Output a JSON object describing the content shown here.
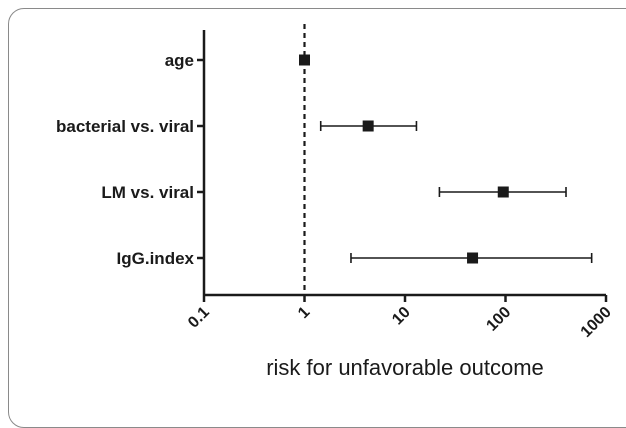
{
  "chart_data": {
    "type": "scatter",
    "subtype": "forest-plot",
    "x_scale": "log",
    "xlim": [
      0.1,
      1000
    ],
    "xlabel": "risk for unfavorable outcome",
    "xticks": [
      "0.1",
      "1",
      "10",
      "100",
      "1000"
    ],
    "xtick_values": [
      0.1,
      1,
      10,
      100,
      1000
    ],
    "reference_line": 1,
    "reference_line_style": "dashed",
    "categories": [
      "age",
      "bacterial vs. viral",
      "LM vs. viral",
      "IgG.index"
    ],
    "estimates": [
      1.0,
      4.3,
      95,
      47
    ],
    "ci_lower": [
      null,
      1.45,
      22,
      2.9
    ],
    "ci_upper": [
      null,
      13,
      400,
      720
    ],
    "marker": "square",
    "color": "#1a1a1a"
  }
}
